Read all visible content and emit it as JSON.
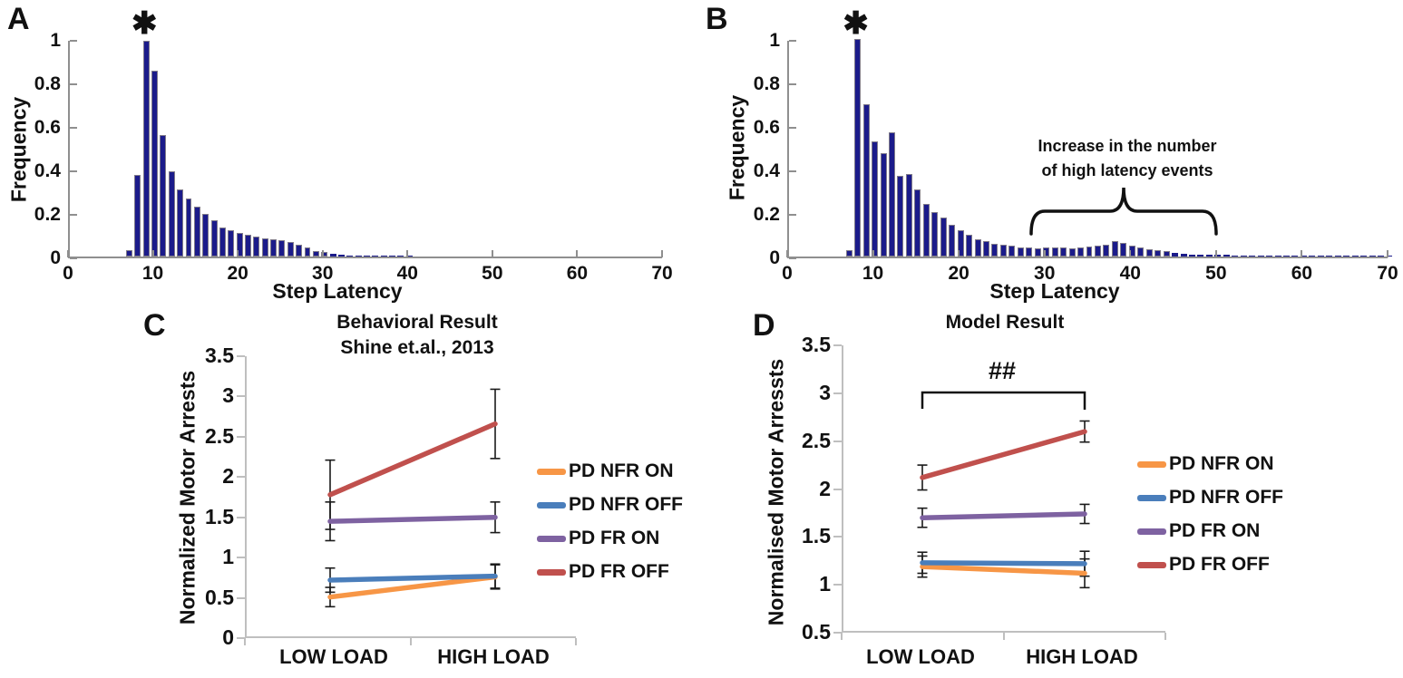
{
  "colors": {
    "bar_fill": "#1b1b8a",
    "bar_edge": "#b5ad8a",
    "hist_axis": "#8f8f8f",
    "line_axis": "#bfbfbf",
    "error_bar": "#1a1a1a",
    "orange": "#F79646",
    "blue": "#4A7EBB",
    "purple": "#7E62A1",
    "red": "#C0504D"
  },
  "chart_data": [
    {
      "id": "A",
      "panel_label": "A",
      "type": "bar",
      "title": "",
      "xlabel": "Step Latency",
      "ylabel": "Frequency",
      "xlim": [
        0,
        70
      ],
      "ylim": [
        0,
        1
      ],
      "xticks": [
        "0",
        "10",
        "20",
        "30",
        "40",
        "50",
        "60",
        "70"
      ],
      "yticks": [
        "0",
        "0.2",
        "0.4",
        "0.6",
        "0.8",
        "1"
      ],
      "star": "✱",
      "star_x": 9,
      "x_start": 7,
      "values": [
        0.03,
        0.375,
        0.99,
        0.855,
        0.56,
        0.39,
        0.31,
        0.265,
        0.23,
        0.195,
        0.165,
        0.135,
        0.12,
        0.11,
        0.1,
        0.09,
        0.085,
        0.08,
        0.075,
        0.065,
        0.055,
        0.04,
        0.025,
        0.02,
        0.012,
        0.008,
        0.006,
        0.005,
        0.005,
        0.004,
        0.004,
        0.004,
        0.004,
        0.004
      ]
    },
    {
      "id": "B",
      "panel_label": "B",
      "type": "bar",
      "title": "",
      "xlabel": "Step Latency",
      "ylabel": "Frequency",
      "xlim": [
        0,
        70
      ],
      "ylim": [
        0,
        1
      ],
      "xticks": [
        "0",
        "10",
        "20",
        "30",
        "40",
        "50",
        "60",
        "70"
      ],
      "yticks": [
        "0",
        "0.2",
        "0.4",
        "0.6",
        "0.8",
        "1"
      ],
      "star": "✱",
      "star_x": 8,
      "annotation_line1": "Increase in the number",
      "annotation_line2": "of high latency events",
      "brace_range": [
        28.5,
        50
      ],
      "x_start": 7,
      "values": [
        0.03,
        1.0,
        0.7,
        0.53,
        0.475,
        0.57,
        0.37,
        0.38,
        0.31,
        0.24,
        0.205,
        0.18,
        0.145,
        0.12,
        0.1,
        0.08,
        0.07,
        0.06,
        0.055,
        0.05,
        0.042,
        0.04,
        0.038,
        0.04,
        0.042,
        0.04,
        0.036,
        0.04,
        0.045,
        0.05,
        0.055,
        0.07,
        0.063,
        0.05,
        0.04,
        0.035,
        0.03,
        0.025,
        0.015,
        0.012,
        0.01,
        0.01,
        0.01,
        0.008,
        0.007,
        0.006,
        0.006,
        0.006,
        0.006,
        0.005,
        0.005,
        0.005,
        0.006,
        0.006,
        0.005,
        0.004,
        0.004,
        0.004,
        0.004,
        0.004,
        0.004,
        0.004,
        0.004,
        0.004
      ]
    },
    {
      "id": "C",
      "panel_label": "C",
      "type": "line",
      "title_line1": "Behavioral Result",
      "title_line2": "Shine et.al., 2013",
      "ylabel": "Normalized Motor Arrests",
      "categories": [
        "LOW LOAD",
        "HIGH LOAD"
      ],
      "ylim": [
        0,
        3.5
      ],
      "yticks": [
        "0",
        "0.5",
        "1",
        "1.5",
        "2",
        "2.5",
        "3",
        "3.5"
      ],
      "legend_position": "right",
      "series": [
        {
          "name": "PD NFR ON",
          "color": "#F79646",
          "values": [
            0.51,
            0.76
          ],
          "errors": [
            0.12,
            0.15
          ]
        },
        {
          "name": "PD NFR OFF",
          "color": "#4A7EBB",
          "values": [
            0.72,
            0.77
          ],
          "errors": [
            0.15,
            0.15
          ]
        },
        {
          "name": "PD FR ON",
          "color": "#7E62A1",
          "values": [
            1.45,
            1.5
          ],
          "errors": [
            0.24,
            0.19
          ]
        },
        {
          "name": "PD FR OFF",
          "color": "#C0504D",
          "values": [
            1.78,
            2.66
          ],
          "errors": [
            0.43,
            0.43
          ]
        }
      ]
    },
    {
      "id": "D",
      "panel_label": "D",
      "type": "line",
      "title_line1": "Model Result",
      "ylabel": "Normalised Motor Arressts",
      "categories": [
        "LOW LOAD",
        "HIGH LOAD"
      ],
      "ylim": [
        0.5,
        3.5
      ],
      "yticks": [
        "0.5",
        "1",
        "1.5",
        "2",
        "2.5",
        "3",
        "3.5"
      ],
      "legend_position": "right",
      "sig_label": "##",
      "series": [
        {
          "name": "PD NFR ON",
          "color": "#F79646",
          "values": [
            1.19,
            1.12
          ],
          "errors": [
            0.11,
            0.15
          ]
        },
        {
          "name": "PD NFR OFF",
          "color": "#4A7EBB",
          "values": [
            1.23,
            1.22
          ],
          "errors": [
            0.11,
            0.13
          ]
        },
        {
          "name": "PD FR ON",
          "color": "#7E62A1",
          "values": [
            1.7,
            1.74
          ],
          "errors": [
            0.1,
            0.1
          ]
        },
        {
          "name": "PD FR OFF",
          "color": "#C0504D",
          "values": [
            2.12,
            2.6
          ],
          "errors": [
            0.13,
            0.11
          ]
        }
      ]
    }
  ]
}
